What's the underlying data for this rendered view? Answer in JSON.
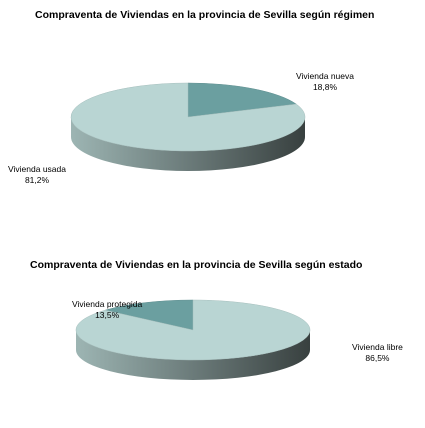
{
  "chart_data": [
    {
      "type": "pie",
      "title": "Compraventa de Viviendas en la provincia de Sevilla según régimen",
      "categories": [
        "Vivienda nueva",
        "Vivienda usada"
      ],
      "values": [
        18.8,
        81.2
      ],
      "value_labels": [
        "18,8%",
        "81,2%"
      ],
      "colors": [
        "#6b9fa0",
        "#b9d5d3"
      ]
    },
    {
      "type": "pie",
      "title": "Compraventa de Viviendas en la provincia de Sevilla según estado",
      "categories": [
        "Vivienda protegida",
        "Vivienda libre"
      ],
      "values": [
        13.5,
        86.5
      ],
      "value_labels": [
        "13,5%",
        "86,5%"
      ],
      "colors": [
        "#6b9fa0",
        "#b9d5d3"
      ]
    }
  ]
}
